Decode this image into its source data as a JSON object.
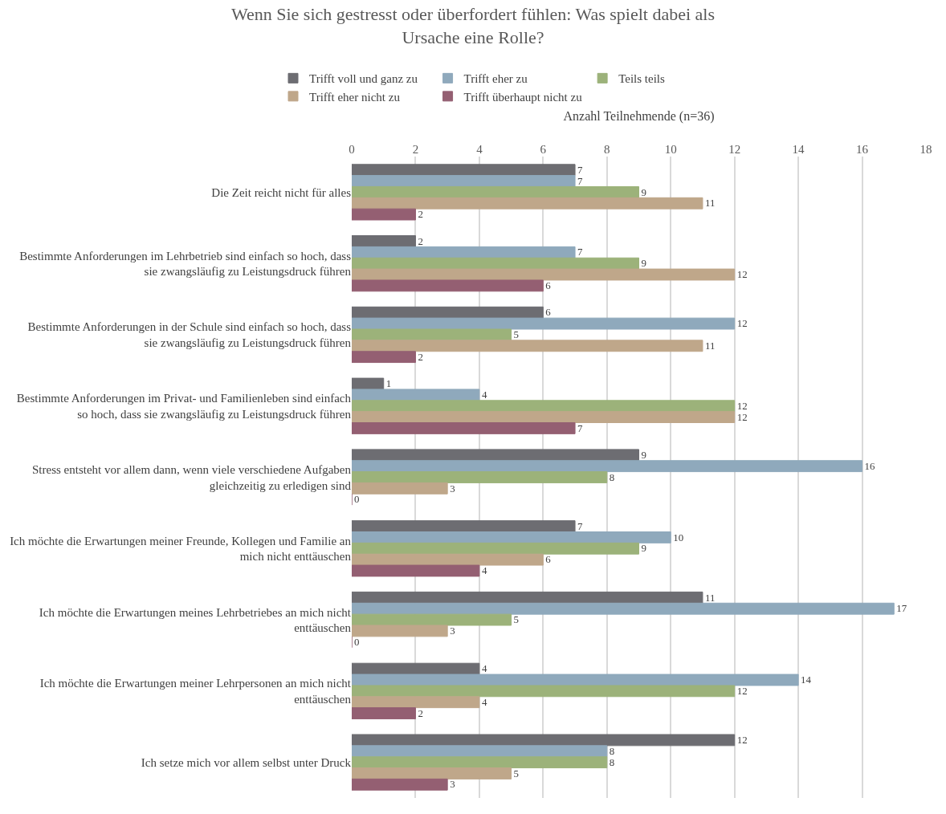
{
  "chart_data": {
    "type": "bar",
    "orientation": "horizontal",
    "title": "Wenn Sie sich gestresst oder überfordert fühlen: Was spielt dabei als Ursache eine Rolle?",
    "xlabel": "Anzahl Teilnehmende (n=36)",
    "categories": [
      "Die Zeit reicht nicht für alles",
      "Bestimmte Anforderungen im Lehrbetrieb sind einfach so hoch, dass sie zwangsläufig zu Leistungsdruck führen",
      "Bestimmte Anforderungen in der Schule sind einfach so hoch, dass sie zwangsläufig zu Leistungsdruck führen",
      "Bestimmte Anforderungen im Privat- und Familienleben sind einfach so hoch, dass sie zwangsläufig zu Leistungsdruck führen",
      "Stress entsteht vor allem dann, wenn viele verschiedene Aufgaben gleichzeitig zu erledigen sind",
      "Ich möchte die Erwartungen meiner Freunde, Kollegen und Familie an mich nicht enttäuschen",
      "Ich möchte die Erwartungen meines Lehrbetriebes an mich nicht enttäuschen",
      "Ich möchte die Erwartungen meiner Lehrpersonen an mich nicht enttäuschen",
      "Ich setze mich vor allem selbst unter Druck"
    ],
    "series": [
      {
        "name": "Trifft voll und ganz zu",
        "color": "#6d6d72",
        "values": [
          7,
          2,
          6,
          1,
          9,
          7,
          11,
          4,
          12
        ]
      },
      {
        "name": "Trifft eher zu",
        "color": "#8fa9bc",
        "values": [
          7,
          7,
          12,
          4,
          16,
          10,
          17,
          14,
          8
        ]
      },
      {
        "name": "Teils teils",
        "color": "#9cb27a",
        "values": [
          9,
          9,
          5,
          12,
          8,
          9,
          5,
          12,
          8
        ]
      },
      {
        "name": "Trifft eher nicht zu",
        "color": "#bfa78a",
        "values": [
          11,
          12,
          11,
          12,
          3,
          6,
          3,
          4,
          5
        ]
      },
      {
        "name": "Trifft überhaupt nicht zu",
        "color": "#945f72",
        "values": [
          2,
          6,
          2,
          7,
          0,
          4,
          0,
          2,
          3
        ]
      }
    ],
    "xlim": [
      0,
      18
    ],
    "xticks": [
      0,
      2,
      4,
      6,
      8,
      10,
      12,
      14,
      16,
      18
    ],
    "grid": "x",
    "legend": "top",
    "data_labels": true
  }
}
